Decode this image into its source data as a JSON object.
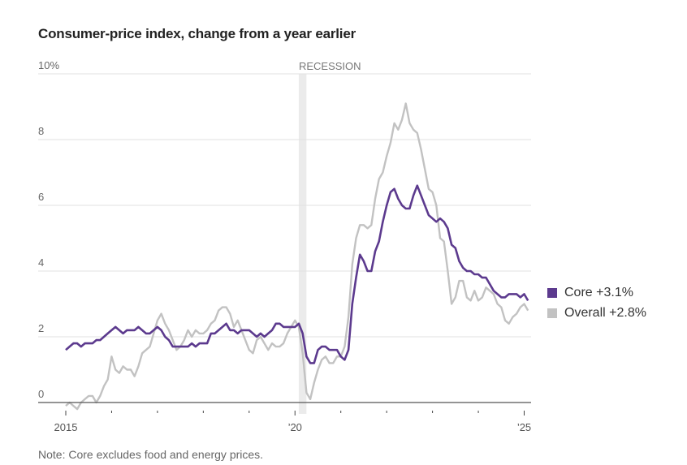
{
  "chart_data": {
    "type": "line",
    "title": "Consumer-price index, change from a year earlier",
    "xlabel": "",
    "ylabel": "",
    "y_unit_suffix": "%",
    "ylim": [
      0,
      10
    ],
    "yticks": [
      0,
      2,
      4,
      6,
      8,
      10
    ],
    "ytick_labels": [
      "0",
      "2",
      "4",
      "6",
      "8",
      "10%"
    ],
    "grid": true,
    "x_start": "2015-01",
    "x_end": "2025-02",
    "x_frequency": "monthly",
    "xticks_years": [
      2015,
      2016,
      2017,
      2018,
      2019,
      2020,
      2021,
      2022,
      2023,
      2024,
      2025
    ],
    "xtick_labels": {
      "2015": "2015",
      "2020": "’20",
      "2025": "’25"
    },
    "legend_position": "right",
    "recession": {
      "label": "RECESSION",
      "start": "2020-02",
      "end": "2020-04"
    },
    "series": [
      {
        "name": "Core",
        "legend_label": "Core +3.1%",
        "color": "#5c3a8e",
        "values": [
          1.6,
          1.7,
          1.8,
          1.8,
          1.7,
          1.8,
          1.8,
          1.8,
          1.9,
          1.9,
          2.0,
          2.1,
          2.2,
          2.3,
          2.2,
          2.1,
          2.2,
          2.2,
          2.2,
          2.3,
          2.2,
          2.1,
          2.1,
          2.2,
          2.3,
          2.2,
          2.0,
          1.9,
          1.7,
          1.7,
          1.7,
          1.7,
          1.7,
          1.8,
          1.7,
          1.8,
          1.8,
          1.8,
          2.1,
          2.1,
          2.2,
          2.3,
          2.4,
          2.2,
          2.2,
          2.1,
          2.2,
          2.2,
          2.2,
          2.1,
          2.0,
          2.1,
          2.0,
          2.1,
          2.2,
          2.4,
          2.4,
          2.3,
          2.3,
          2.3,
          2.3,
          2.4,
          2.1,
          1.4,
          1.2,
          1.2,
          1.6,
          1.7,
          1.7,
          1.6,
          1.6,
          1.6,
          1.4,
          1.3,
          1.6,
          3.0,
          3.8,
          4.5,
          4.3,
          4.0,
          4.0,
          4.6,
          4.9,
          5.5,
          6.0,
          6.4,
          6.5,
          6.2,
          6.0,
          5.9,
          5.9,
          6.3,
          6.6,
          6.3,
          6.0,
          5.7,
          5.6,
          5.5,
          5.6,
          5.5,
          5.3,
          4.8,
          4.7,
          4.3,
          4.1,
          4.0,
          4.0,
          3.9,
          3.9,
          3.8,
          3.8,
          3.6,
          3.4,
          3.3,
          3.2,
          3.2,
          3.3,
          3.3,
          3.3,
          3.2,
          3.3,
          3.1
        ]
      },
      {
        "name": "Overall",
        "legend_label": "Overall +2.8%",
        "color": "#c2c2c2",
        "values": [
          -0.1,
          0.0,
          -0.1,
          -0.2,
          0.0,
          0.1,
          0.2,
          0.2,
          0.0,
          0.2,
          0.5,
          0.7,
          1.4,
          1.0,
          0.9,
          1.1,
          1.0,
          1.0,
          0.8,
          1.1,
          1.5,
          1.6,
          1.7,
          2.1,
          2.5,
          2.7,
          2.4,
          2.2,
          1.9,
          1.6,
          1.7,
          1.9,
          2.2,
          2.0,
          2.2,
          2.1,
          2.1,
          2.2,
          2.4,
          2.5,
          2.8,
          2.9,
          2.9,
          2.7,
          2.3,
          2.5,
          2.2,
          1.9,
          1.6,
          1.5,
          1.9,
          2.0,
          1.8,
          1.6,
          1.8,
          1.7,
          1.7,
          1.8,
          2.1,
          2.3,
          2.5,
          2.3,
          1.5,
          0.3,
          0.1,
          0.6,
          1.0,
          1.3,
          1.4,
          1.2,
          1.2,
          1.4,
          1.4,
          1.7,
          2.6,
          4.2,
          5.0,
          5.4,
          5.4,
          5.3,
          5.4,
          6.2,
          6.8,
          7.0,
          7.5,
          7.9,
          8.5,
          8.3,
          8.6,
          9.1,
          8.5,
          8.3,
          8.2,
          7.7,
          7.1,
          6.5,
          6.4,
          6.0,
          5.0,
          4.9,
          4.0,
          3.0,
          3.2,
          3.7,
          3.7,
          3.2,
          3.1,
          3.4,
          3.1,
          3.2,
          3.5,
          3.4,
          3.3,
          3.0,
          2.9,
          2.5,
          2.4,
          2.6,
          2.7,
          2.9,
          3.0,
          2.8
        ]
      }
    ]
  },
  "note": "Note: Core excludes food and energy prices."
}
